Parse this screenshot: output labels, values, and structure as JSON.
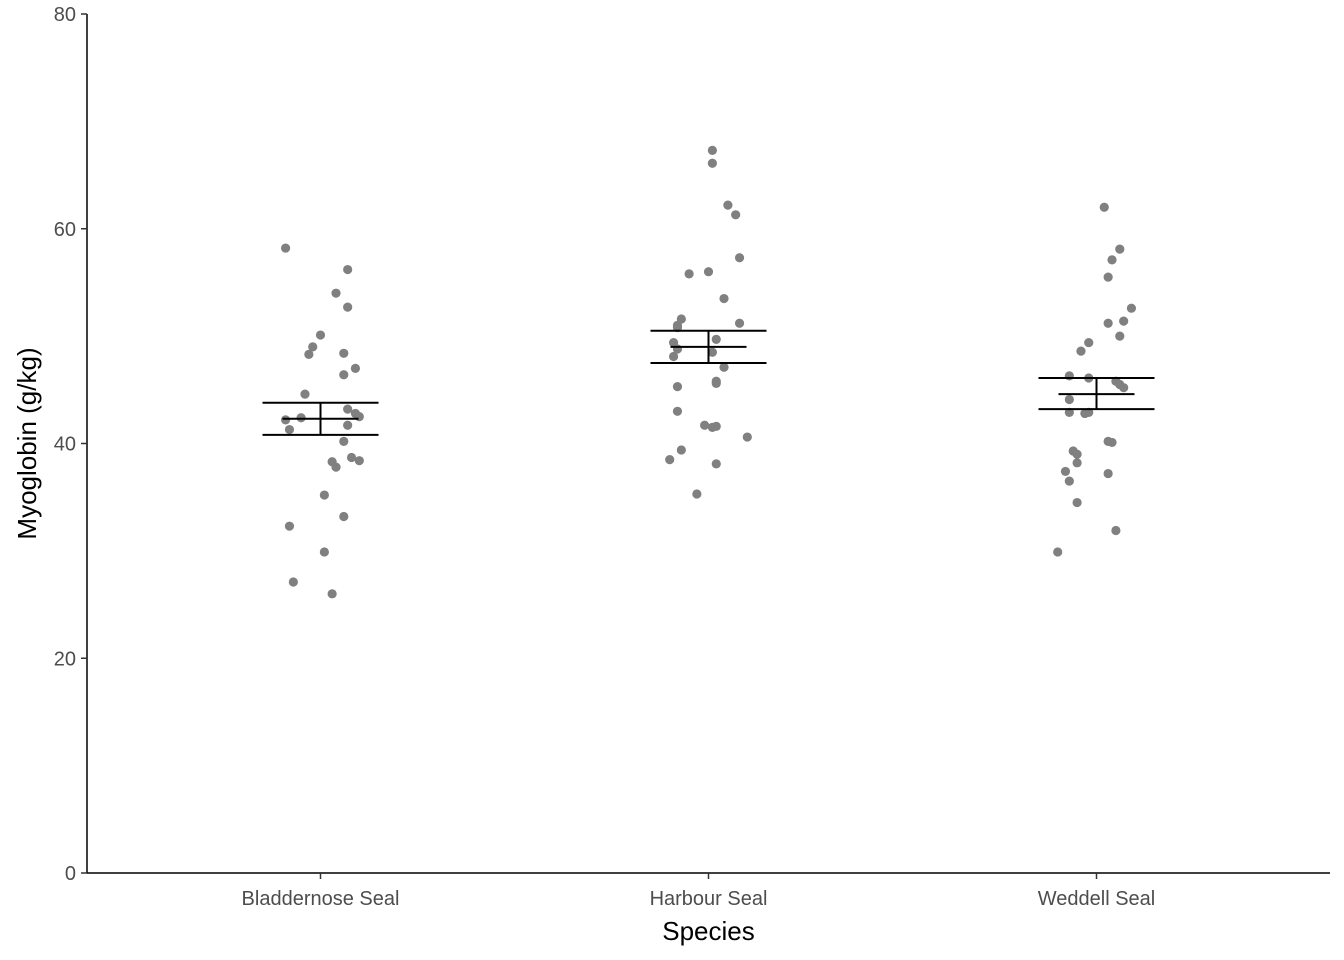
{
  "chart_data": {
    "type": "scatter",
    "xlabel": "Species",
    "ylabel": "Myoglobin (g/kg)",
    "ylim": [
      0,
      80
    ],
    "yticks": [
      0,
      20,
      40,
      60,
      80
    ],
    "categories": [
      "Bladdernose Seal",
      "Harbour Seal",
      "Weddell Seal"
    ],
    "grid": false,
    "point_color": "#808080",
    "errorbar_color": "#000000",
    "series": [
      {
        "category": "Bladdernose Seal",
        "mean": 42.3,
        "ci": [
          40.8,
          43.8
        ],
        "points": [
          {
            "x": -0.09,
            "y": 58.2
          },
          {
            "x": 0.07,
            "y": 56.2
          },
          {
            "x": 0.04,
            "y": 54.0
          },
          {
            "x": 0.07,
            "y": 52.7
          },
          {
            "x": 0.0,
            "y": 50.1
          },
          {
            "x": -0.02,
            "y": 49.0
          },
          {
            "x": -0.03,
            "y": 48.3
          },
          {
            "x": 0.06,
            "y": 48.4
          },
          {
            "x": 0.09,
            "y": 47.0
          },
          {
            "x": 0.06,
            "y": 46.4
          },
          {
            "x": -0.04,
            "y": 44.6
          },
          {
            "x": 0.07,
            "y": 43.2
          },
          {
            "x": 0.09,
            "y": 42.8
          },
          {
            "x": 0.1,
            "y": 42.5
          },
          {
            "x": -0.09,
            "y": 42.2
          },
          {
            "x": -0.05,
            "y": 42.4
          },
          {
            "x": 0.07,
            "y": 41.7
          },
          {
            "x": -0.08,
            "y": 41.3
          },
          {
            "x": 0.06,
            "y": 40.2
          },
          {
            "x": 0.08,
            "y": 38.7
          },
          {
            "x": 0.03,
            "y": 38.3
          },
          {
            "x": 0.1,
            "y": 38.4
          },
          {
            "x": 0.04,
            "y": 37.8
          },
          {
            "x": 0.01,
            "y": 35.2
          },
          {
            "x": 0.06,
            "y": 33.2
          },
          {
            "x": -0.08,
            "y": 32.3
          },
          {
            "x": 0.01,
            "y": 29.9
          },
          {
            "x": -0.07,
            "y": 27.1
          },
          {
            "x": 0.03,
            "y": 26.0
          }
        ]
      },
      {
        "category": "Harbour Seal",
        "mean": 49.0,
        "ci": [
          47.5,
          50.5
        ],
        "points": [
          {
            "x": 0.01,
            "y": 67.3
          },
          {
            "x": 0.01,
            "y": 66.1
          },
          {
            "x": 0.05,
            "y": 62.2
          },
          {
            "x": 0.07,
            "y": 61.3
          },
          {
            "x": 0.08,
            "y": 57.3
          },
          {
            "x": -0.05,
            "y": 55.8
          },
          {
            "x": 0.0,
            "y": 56.0
          },
          {
            "x": 0.04,
            "y": 53.5
          },
          {
            "x": -0.08,
            "y": 51.0
          },
          {
            "x": -0.07,
            "y": 51.6
          },
          {
            "x": -0.08,
            "y": 50.8
          },
          {
            "x": 0.08,
            "y": 51.2
          },
          {
            "x": 0.02,
            "y": 49.7
          },
          {
            "x": -0.09,
            "y": 49.4
          },
          {
            "x": -0.08,
            "y": 48.8
          },
          {
            "x": 0.01,
            "y": 48.5
          },
          {
            "x": -0.09,
            "y": 48.1
          },
          {
            "x": 0.04,
            "y": 47.1
          },
          {
            "x": 0.02,
            "y": 45.8
          },
          {
            "x": 0.02,
            "y": 45.6
          },
          {
            "x": -0.08,
            "y": 45.3
          },
          {
            "x": -0.08,
            "y": 43.0
          },
          {
            "x": -0.01,
            "y": 41.7
          },
          {
            "x": 0.01,
            "y": 41.5
          },
          {
            "x": 0.02,
            "y": 41.6
          },
          {
            "x": 0.1,
            "y": 40.6
          },
          {
            "x": -0.07,
            "y": 39.4
          },
          {
            "x": -0.1,
            "y": 38.5
          },
          {
            "x": 0.02,
            "y": 38.1
          },
          {
            "x": -0.03,
            "y": 35.3
          }
        ]
      },
      {
        "category": "Weddell Seal",
        "mean": 44.6,
        "ci": [
          43.2,
          46.1
        ],
        "points": [
          {
            "x": 0.02,
            "y": 62.0
          },
          {
            "x": 0.06,
            "y": 58.1
          },
          {
            "x": 0.04,
            "y": 57.1
          },
          {
            "x": 0.03,
            "y": 55.5
          },
          {
            "x": 0.09,
            "y": 52.6
          },
          {
            "x": 0.07,
            "y": 51.4
          },
          {
            "x": 0.03,
            "y": 51.2
          },
          {
            "x": 0.06,
            "y": 50.0
          },
          {
            "x": -0.02,
            "y": 49.4
          },
          {
            "x": -0.04,
            "y": 48.6
          },
          {
            "x": -0.07,
            "y": 46.3
          },
          {
            "x": -0.02,
            "y": 46.1
          },
          {
            "x": 0.05,
            "y": 45.8
          },
          {
            "x": 0.06,
            "y": 45.5
          },
          {
            "x": 0.07,
            "y": 45.2
          },
          {
            "x": -0.07,
            "y": 44.1
          },
          {
            "x": -0.07,
            "y": 42.9
          },
          {
            "x": -0.03,
            "y": 42.8
          },
          {
            "x": -0.02,
            "y": 42.9
          },
          {
            "x": 0.03,
            "y": 40.2
          },
          {
            "x": 0.04,
            "y": 40.1
          },
          {
            "x": -0.06,
            "y": 39.3
          },
          {
            "x": -0.05,
            "y": 39.0
          },
          {
            "x": -0.05,
            "y": 38.2
          },
          {
            "x": -0.08,
            "y": 37.4
          },
          {
            "x": 0.03,
            "y": 37.2
          },
          {
            "x": -0.07,
            "y": 36.5
          },
          {
            "x": -0.05,
            "y": 34.5
          },
          {
            "x": 0.05,
            "y": 31.9
          },
          {
            "x": -0.1,
            "y": 29.9
          }
        ]
      }
    ]
  }
}
